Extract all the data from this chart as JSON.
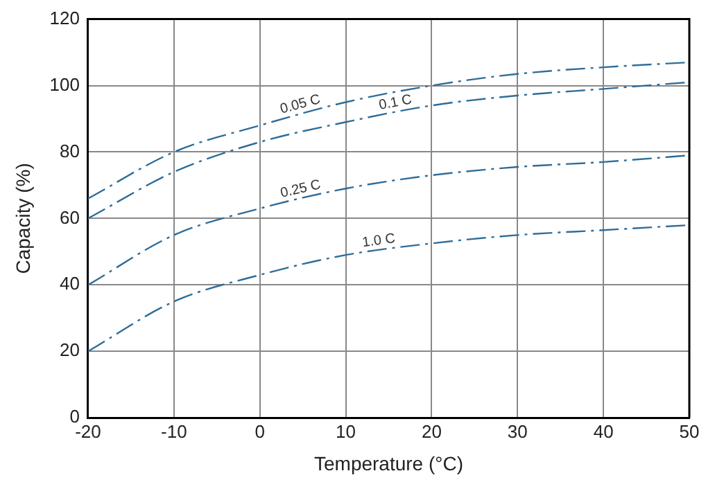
{
  "chart_data": {
    "type": "line",
    "xlabel": "Temperature (°C)",
    "ylabel": "Capacity (%)",
    "x": [
      -20,
      -10,
      0,
      10,
      20,
      30,
      40,
      50
    ],
    "series": [
      {
        "name": "0.05 C",
        "color": "#2f6d99",
        "values": [
          66,
          80,
          88,
          95,
          100,
          103.5,
          105.5,
          107
        ]
      },
      {
        "name": "0.1 C",
        "color": "#2f6d99",
        "values": [
          60,
          74,
          83,
          89,
          94,
          97,
          99,
          101
        ]
      },
      {
        "name": "0.25 C",
        "color": "#2f6d99",
        "values": [
          40,
          55,
          63,
          69,
          73,
          75.5,
          77,
          79
        ]
      },
      {
        "name": "1.0 C",
        "color": "#2f6d99",
        "values": [
          20,
          35,
          43,
          49,
          52.5,
          55,
          56.5,
          58
        ]
      }
    ],
    "xlim": [
      -20,
      50
    ],
    "xticks": [
      -20,
      -10,
      0,
      10,
      20,
      30,
      40,
      50
    ],
    "ylim": [
      0,
      120
    ],
    "yticks": [
      0,
      20,
      40,
      60,
      80,
      100,
      120
    ],
    "grid": true,
    "legend": false,
    "marker": "none",
    "line_style": "dashed"
  }
}
